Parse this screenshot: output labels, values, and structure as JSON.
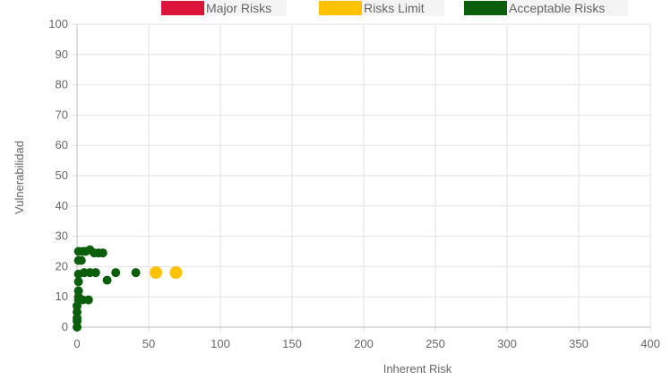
{
  "legend": [
    {
      "label": "Major Risks",
      "color": "#dc143c"
    },
    {
      "label": "Risks Limit",
      "color": "#ffc200"
    },
    {
      "label": "Acceptable Risks",
      "color": "#0b5e0b"
    }
  ],
  "chart_data": {
    "type": "scatter",
    "xlabel": "Inherent Risk",
    "ylabel": "Vulnerabilidad",
    "xlim": [
      0,
      400
    ],
    "ylim": [
      0,
      100
    ],
    "x_ticks": [
      0,
      50,
      100,
      150,
      200,
      250,
      300,
      350,
      400
    ],
    "y_ticks": [
      0,
      10,
      20,
      30,
      40,
      50,
      60,
      70,
      80,
      90,
      100
    ],
    "grid": true,
    "legend_position": "top",
    "series": [
      {
        "name": "Major Risks",
        "color": "#dc143c",
        "points": []
      },
      {
        "name": "Risks Limit",
        "color": "#ffc200",
        "points": [
          {
            "x": 55,
            "y": 18
          },
          {
            "x": 69,
            "y": 18
          }
        ]
      },
      {
        "name": "Acceptable Risks",
        "color": "#0b5e0b",
        "points": [
          {
            "x": 0,
            "y": 0
          },
          {
            "x": 0,
            "y": 2
          },
          {
            "x": 0,
            "y": 3
          },
          {
            "x": 0,
            "y": 5
          },
          {
            "x": 0,
            "y": 7
          },
          {
            "x": 1,
            "y": 9
          },
          {
            "x": 1,
            "y": 10
          },
          {
            "x": 1,
            "y": 12
          },
          {
            "x": 1,
            "y": 15
          },
          {
            "x": 1,
            "y": 17.5
          },
          {
            "x": 1,
            "y": 22
          },
          {
            "x": 3,
            "y": 22
          },
          {
            "x": 1,
            "y": 25
          },
          {
            "x": 4,
            "y": 25
          },
          {
            "x": 6,
            "y": 25
          },
          {
            "x": 9,
            "y": 25.5
          },
          {
            "x": 12,
            "y": 24.5
          },
          {
            "x": 15,
            "y": 24.5
          },
          {
            "x": 18,
            "y": 24.5
          },
          {
            "x": 4,
            "y": 9
          },
          {
            "x": 8,
            "y": 9
          },
          {
            "x": 5,
            "y": 18
          },
          {
            "x": 9,
            "y": 18
          },
          {
            "x": 13,
            "y": 18
          },
          {
            "x": 21,
            "y": 15.5
          },
          {
            "x": 27,
            "y": 18
          },
          {
            "x": 41,
            "y": 18
          }
        ]
      }
    ]
  }
}
